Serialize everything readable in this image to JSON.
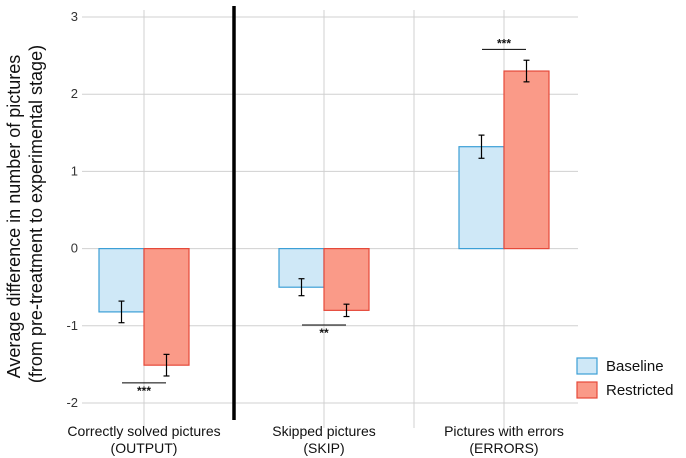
{
  "chart_data": {
    "type": "bar",
    "title": "",
    "ylabel": [
      "Average difference in number of pictures",
      "(from pre-treatment to experimental stage)"
    ],
    "xlabel": "",
    "ylim": [
      -2,
      3
    ],
    "yticks": [
      "-2",
      "-1",
      "0",
      "1",
      "2",
      "3"
    ],
    "grid": true,
    "legend_position": "right",
    "categories": [
      [
        "Correctly solved pictures",
        "(OUTPUT)"
      ],
      [
        "Skipped pictures",
        "(SKIP)"
      ],
      [
        "Pictures with errors",
        "(ERRORS)"
      ]
    ],
    "series": [
      {
        "name": "Baseline",
        "fill": "#cfe8f7",
        "stroke": "#3c9fd6",
        "values": [
          -0.82,
          -0.5,
          1.32
        ],
        "error": [
          0.14,
          0.11,
          0.15
        ]
      },
      {
        "name": "Restricted",
        "fill": "#fa9a88",
        "stroke": "#e5493a",
        "values": [
          -1.51,
          -0.8,
          2.3
        ],
        "error": [
          0.14,
          0.08,
          0.14
        ]
      }
    ],
    "significance": [
      {
        "category": 0,
        "label": "***",
        "y": -1.74
      },
      {
        "category": 1,
        "label": "**",
        "y": -0.99
      },
      {
        "category": 2,
        "label": "***",
        "y": 2.58
      }
    ],
    "separator_after": 0
  }
}
